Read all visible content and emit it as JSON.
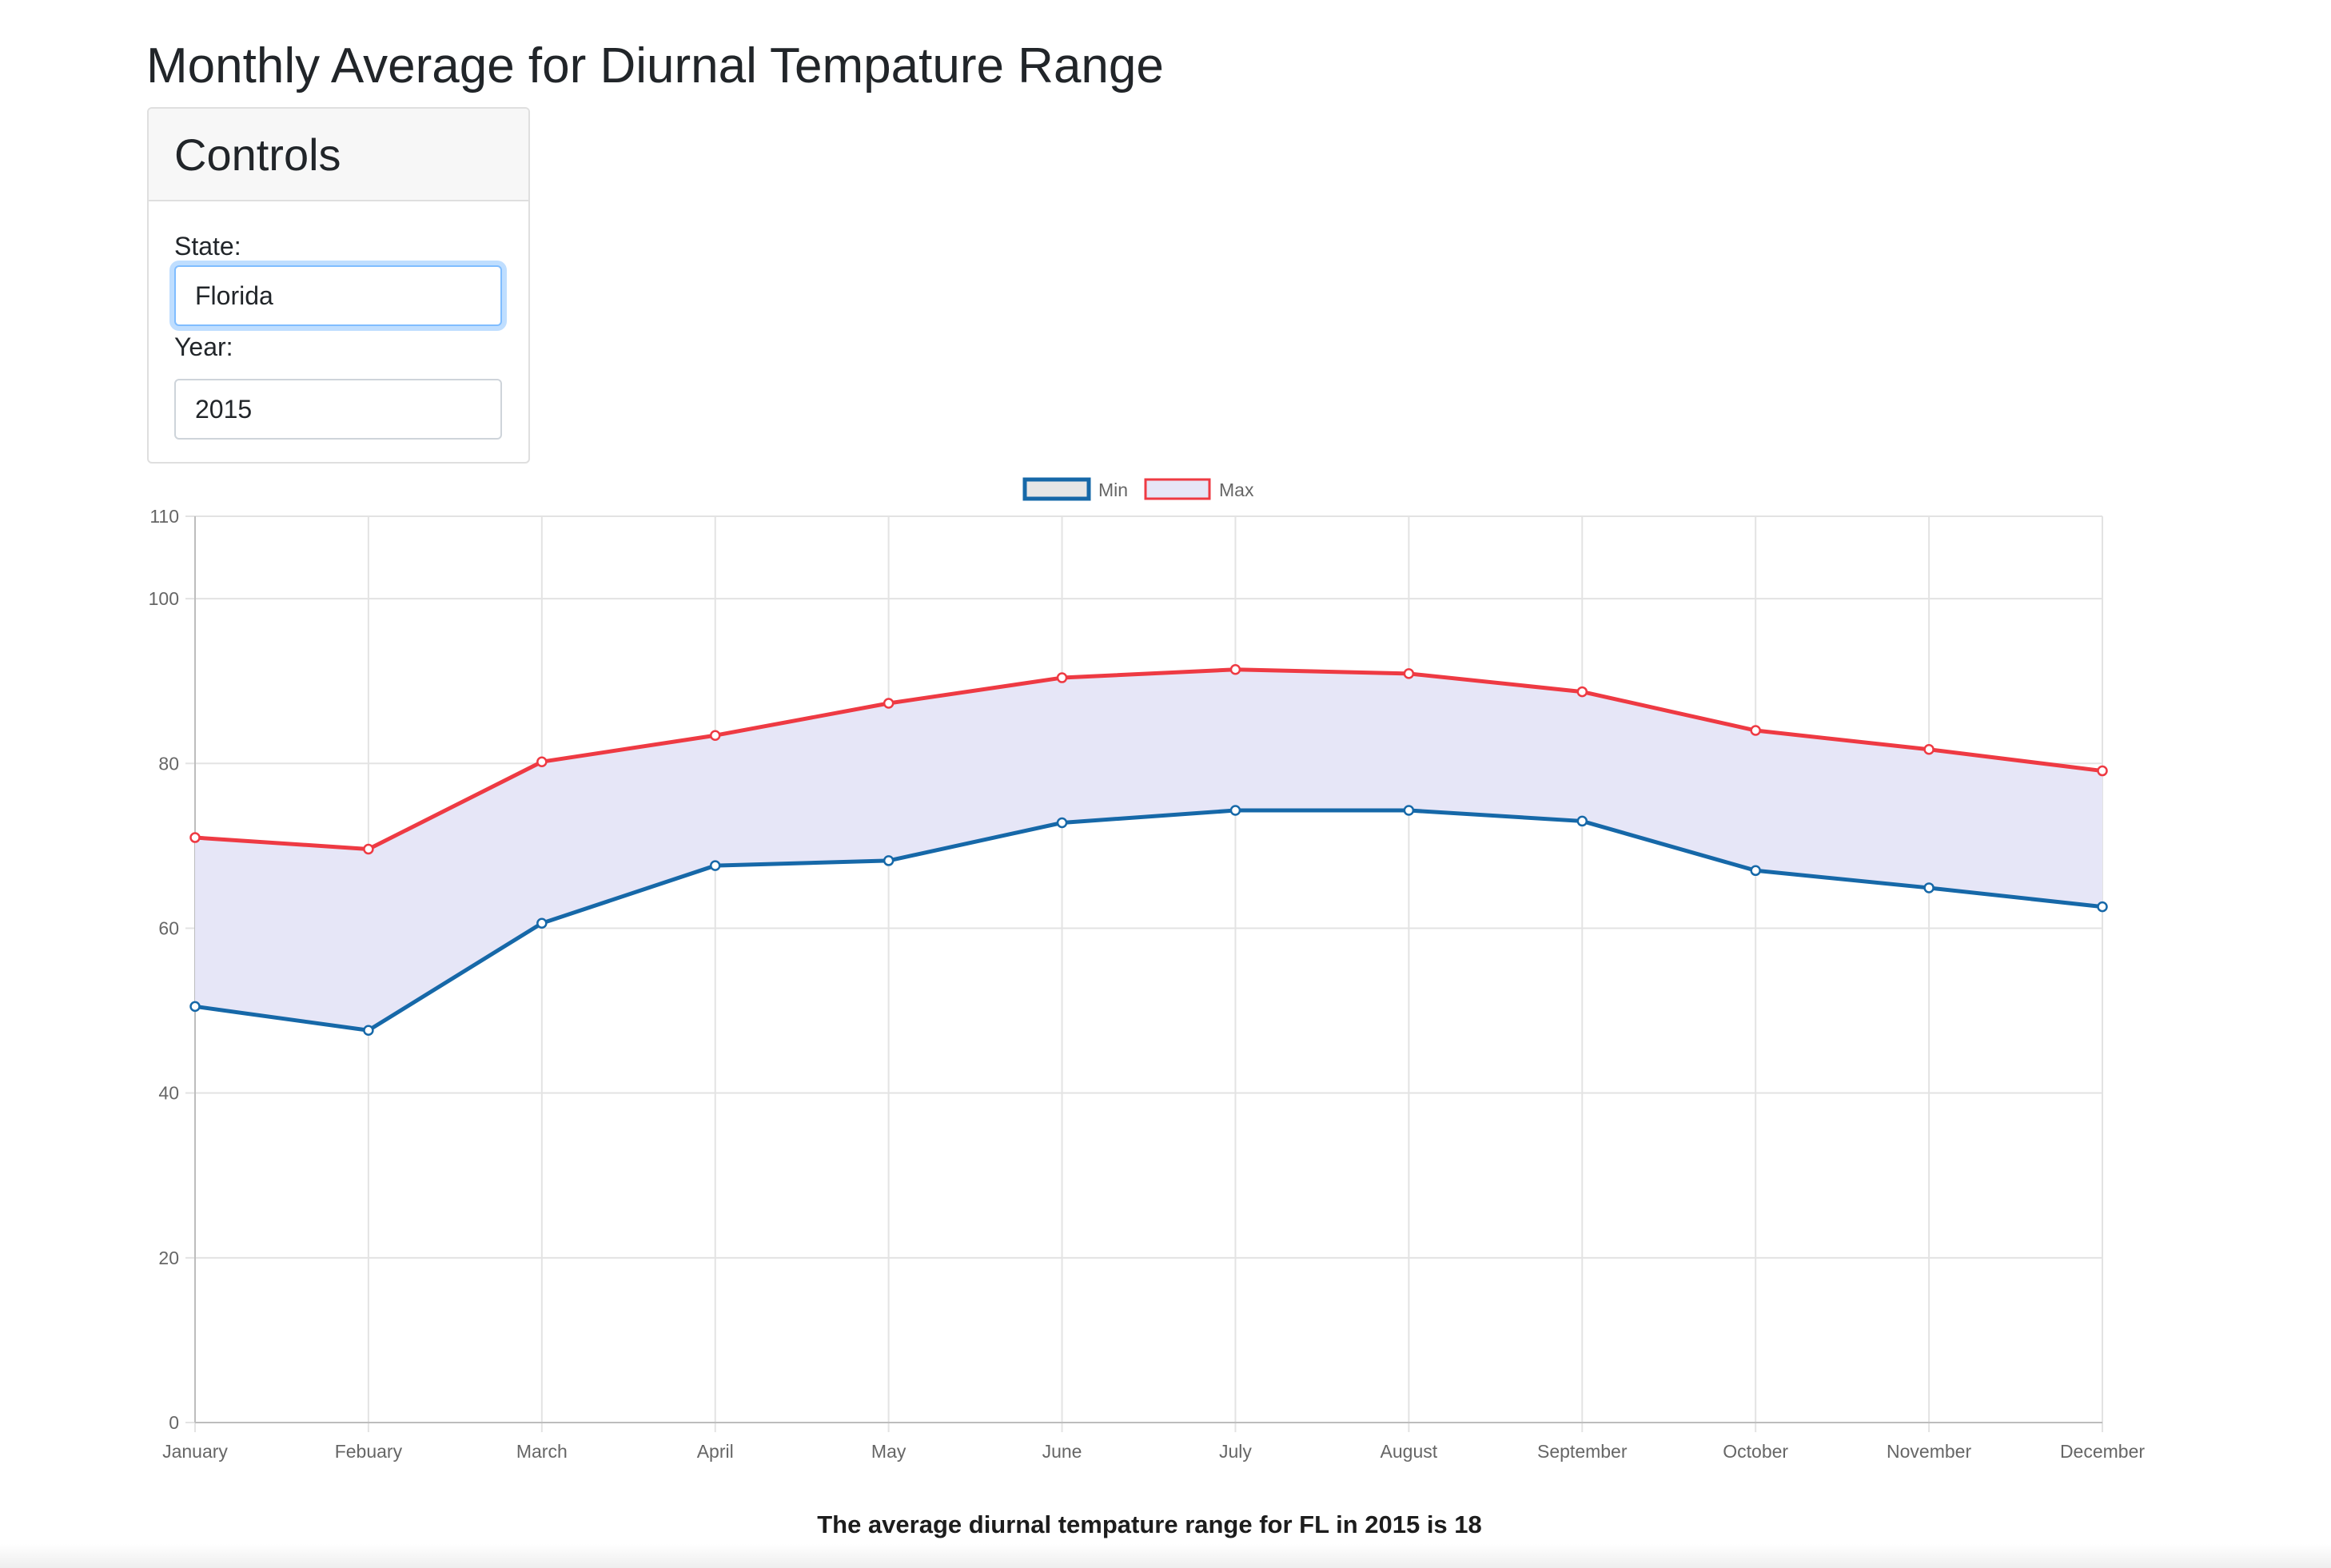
{
  "page": {
    "title": "Monthly Average for Diurnal Tempature Range"
  },
  "controls": {
    "title": "Controls",
    "state_label": "State:",
    "state_value": "Florida",
    "year_label": "Year:",
    "year_value": "2015"
  },
  "chart_data": {
    "type": "line",
    "title": "",
    "xlabel": "",
    "ylabel": "",
    "categories": [
      "January",
      "Febuary",
      "March",
      "April",
      "May",
      "June",
      "July",
      "August",
      "September",
      "October",
      "November",
      "December"
    ],
    "series": [
      {
        "name": "Min",
        "color": "#1668a8",
        "values": [
          50.5,
          47.6,
          60.6,
          67.6,
          68.2,
          72.8,
          74.3,
          74.3,
          73.0,
          67.0,
          64.9,
          62.6
        ]
      },
      {
        "name": "Max",
        "color": "#ee3a43",
        "values": [
          71.0,
          69.6,
          80.2,
          83.4,
          87.3,
          90.4,
          91.4,
          90.9,
          88.7,
          84.0,
          81.7,
          79.1
        ]
      }
    ],
    "fill_between": {
      "color": "#e6e6f7"
    },
    "ylim": [
      0,
      110
    ],
    "yticks": [
      0,
      20,
      40,
      60,
      80,
      100,
      110
    ],
    "grid": true,
    "legend": "top-center"
  },
  "summary": {
    "text": "The average diurnal tempature range for FL in 2015 is 18"
  }
}
